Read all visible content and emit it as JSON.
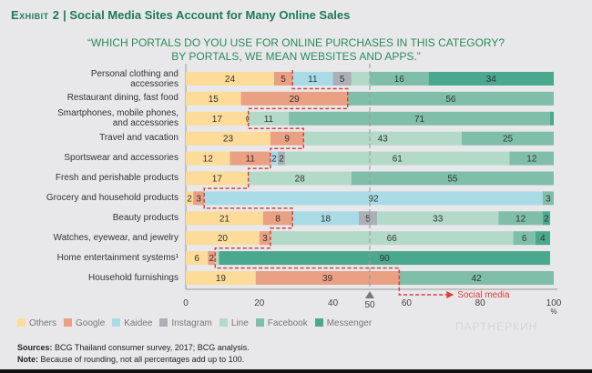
{
  "header": {
    "exhibit": "Exhibit 2",
    "title": "Social Media Sites Account for Many Online Sales",
    "question_line1": "“WHICH PORTALS DO YOU USE FOR ONLINE PURCHASES IN THIS CATEGORY?",
    "question_line2": "BY PORTALS, WE MEAN WEBSITES AND APPS.”"
  },
  "chart_data": {
    "type": "bar",
    "orientation": "horizontal",
    "stacked": true,
    "series_names": [
      "Others",
      "Google",
      "Kaidee",
      "Instagram",
      "Line",
      "Facebook",
      "Messenger"
    ],
    "colors": [
      "#fcdc98",
      "#e9a083",
      "#a8dbe6",
      "#aab0b5",
      "#b3d9c9",
      "#7fbfa9",
      "#4aa88e"
    ],
    "categories": [
      "Personal clothing and accessories",
      "Restaurant dining, fast food",
      "Smartphones, mobile phones, and accessories",
      "Travel and vacation",
      "Sportswear and accessories",
      "Fresh and perishable products",
      "Grocery and household products",
      "Beauty products",
      "Watches, eyewear, and jewelry",
      "Home entertainment systems¹",
      "Household furnishings"
    ],
    "values": [
      [
        24,
        5,
        11,
        5,
        5,
        16,
        34
      ],
      [
        15,
        29,
        0,
        0,
        0,
        56,
        0
      ],
      [
        17,
        0,
        0,
        0,
        11,
        71,
        1
      ],
      [
        23,
        9,
        0,
        0,
        43,
        25,
        0
      ],
      [
        12,
        11,
        2,
        2,
        61,
        12,
        0
      ],
      [
        17,
        0,
        0,
        0,
        28,
        55,
        0
      ],
      [
        2,
        3,
        92,
        0,
        0,
        3,
        0
      ],
      [
        21,
        8,
        18,
        5,
        33,
        12,
        2
      ],
      [
        20,
        3,
        0,
        0,
        66,
        6,
        4
      ],
      [
        6,
        2,
        0,
        0,
        1,
        0,
        90
      ],
      [
        19,
        39,
        0,
        0,
        0,
        42,
        0
      ]
    ],
    "data_labels": [
      [
        "24",
        "5",
        "11",
        "5",
        "",
        "16",
        "34"
      ],
      [
        "15",
        "29",
        "",
        "",
        "",
        "56",
        ""
      ],
      [
        "17",
        "0",
        "",
        "",
        "11",
        "71",
        ""
      ],
      [
        "23",
        "9",
        "",
        "",
        "43",
        "25",
        ""
      ],
      [
        "12",
        "11",
        "2",
        "2",
        "61",
        "12",
        ""
      ],
      [
        "17",
        "",
        "",
        "",
        "28",
        "55",
        ""
      ],
      [
        "2",
        "3",
        "92",
        "",
        "",
        "3",
        ""
      ],
      [
        "21",
        "8",
        "18",
        "5",
        "33",
        "12",
        "2"
      ],
      [
        "20",
        "3",
        "",
        "",
        "66",
        "6",
        "4"
      ],
      [
        "6",
        "2",
        "",
        "",
        "",
        "",
        "90"
      ],
      [
        "19",
        "39",
        "",
        "",
        "",
        "42",
        ""
      ]
    ],
    "xlim": [
      0,
      100
    ],
    "x_ticks": [
      0,
      20,
      40,
      50,
      60,
      80,
      100
    ],
    "x_unit": "%",
    "reference_line": 50,
    "annotation": "Social media",
    "legend_position": "bottom",
    "grid": false
  },
  "footer": {
    "sources_label": "Sources:",
    "sources": " BCG Thailand consumer survey, 2017; BCG analysis.",
    "note_label": "Note:",
    "note": " Because of rounding, not all percentages add up to 100."
  },
  "watermark": "ПАРТНЕРКИН"
}
